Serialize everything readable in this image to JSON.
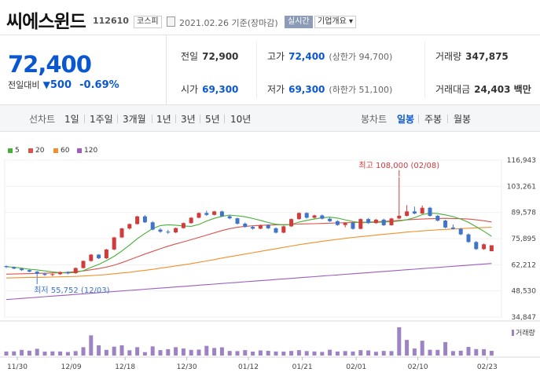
{
  "header": {
    "stock_name": "씨에스윈드",
    "stock_code": "112610",
    "market_badge": "코스피",
    "date_text": "2021.02.26 기준(장마감)",
    "realtime_badge": "실시간",
    "company_button": "기업개요 ▾"
  },
  "price": {
    "current": "72,400",
    "change_label": "전일대비",
    "change_arrow": "▼",
    "change_value": "500",
    "change_pct": "-0.69%"
  },
  "stats": {
    "prev_close_label": "전일",
    "prev_close": "72,900",
    "open_label": "시가",
    "open": "69,300",
    "high_label": "고가",
    "high": "72,400",
    "high_limit": "(상한가 94,700)",
    "low_label": "저가",
    "low": "69,300",
    "low_limit": "(하한가 51,100)",
    "volume_label": "거래량",
    "volume": "347,875",
    "amount_label": "거래대금",
    "amount": "24,403 백만"
  },
  "toolbar": {
    "line_chart_label": "선차트",
    "periods": [
      "1일",
      "1주일",
      "3개월",
      "1년",
      "3년",
      "5년",
      "10년"
    ],
    "candle_label": "봉차트",
    "candle_periods": [
      "일봉",
      "주봉",
      "월봉"
    ],
    "active_candle": "일봉"
  },
  "colors": {
    "up": "#d13b3b",
    "down": "#3f74c9",
    "ma5": "#45b035",
    "ma20": "#d9534f",
    "ma60": "#f0902a",
    "ma120": "#9c5cc0",
    "volume": "#9d83c4"
  },
  "chart_data": {
    "type": "candlestick",
    "legend": [
      {
        "name": "5",
        "color": "#45b035"
      },
      {
        "name": "20",
        "color": "#d9534f"
      },
      {
        "name": "60",
        "color": "#f0902a"
      },
      {
        "name": "120",
        "color": "#9c5cc0"
      }
    ],
    "y_ticks": [
      "116,943",
      "103,261",
      "89,578",
      "75,895",
      "62,212",
      "48,530",
      "34,847"
    ],
    "ylim": [
      34847,
      116943
    ],
    "x_ticks": [
      "11/30",
      "12/09",
      "12/18",
      "12/30",
      "01/12",
      "01/21",
      "02/01",
      "02/10",
      "02/23"
    ],
    "high_annotation": "최고 108,000 (02/08)",
    "low_annotation": "최저 55,752 (12/03)",
    "volume_label": "거래량",
    "candles": [
      [
        61500,
        61800,
        60500,
        61000
      ],
      [
        61000,
        61300,
        59900,
        60200
      ],
      [
        60200,
        60600,
        59000,
        59400
      ],
      [
        59400,
        59800,
        58300,
        58600
      ],
      [
        58600,
        58900,
        55752,
        57500
      ],
      [
        57500,
        58100,
        56400,
        56900
      ],
      [
        56900,
        57600,
        56200,
        57300
      ],
      [
        57300,
        58600,
        56900,
        58400
      ],
      [
        58400,
        58800,
        57200,
        57700
      ],
      [
        57800,
        60800,
        57500,
        60500
      ],
      [
        60500,
        64500,
        60200,
        64200
      ],
      [
        64200,
        67800,
        63800,
        67500
      ],
      [
        67500,
        67800,
        65200,
        65600
      ],
      [
        65600,
        70500,
        65300,
        70200
      ],
      [
        70200,
        76800,
        69800,
        76500
      ],
      [
        76500,
        81500,
        76200,
        81200
      ],
      [
        81200,
        83800,
        80600,
        83500
      ],
      [
        83500,
        87800,
        83200,
        87500
      ],
      [
        87500,
        88200,
        84100,
        84400
      ],
      [
        84400,
        85000,
        80200,
        80600
      ],
      [
        80600,
        81400,
        78900,
        79500
      ],
      [
        79500,
        80500,
        78300,
        79100
      ],
      [
        79100,
        81700,
        78800,
        81400
      ],
      [
        81400,
        84300,
        81100,
        84000
      ],
      [
        84000,
        87100,
        83700,
        86800
      ],
      [
        86800,
        89600,
        86500,
        89300
      ],
      [
        89300,
        90500,
        87800,
        88300
      ],
      [
        88300,
        90400,
        88000,
        90100
      ],
      [
        90100,
        90500,
        87200,
        87600
      ],
      [
        87600,
        88400,
        86000,
        86500
      ],
      [
        86500,
        86900,
        83200,
        83700
      ],
      [
        83700,
        84300,
        81600,
        82000
      ],
      [
        82000,
        82600,
        80600,
        81100
      ],
      [
        81100,
        83200,
        80800,
        82900
      ],
      [
        82900,
        83400,
        80900,
        81300
      ],
      [
        81300,
        81800,
        78600,
        79000
      ],
      [
        79000,
        82600,
        78700,
        82300
      ],
      [
        82300,
        86400,
        82000,
        86100
      ],
      [
        86100,
        89600,
        85800,
        89300
      ],
      [
        89300,
        89600,
        86400,
        86800
      ],
      [
        86800,
        88400,
        86400,
        88000
      ],
      [
        88000,
        88500,
        85900,
        86300
      ],
      [
        86300,
        86800,
        84600,
        85000
      ],
      [
        85000,
        85500,
        82600,
        83000
      ],
      [
        83000,
        84400,
        81800,
        84100
      ],
      [
        84100,
        84600,
        80600,
        81000
      ],
      [
        81000,
        86400,
        80700,
        86100
      ],
      [
        86100,
        86600,
        83600,
        84000
      ],
      [
        84000,
        86100,
        83600,
        85800
      ],
      [
        85800,
        86300,
        82500,
        82900
      ],
      [
        82900,
        86700,
        82600,
        86400
      ],
      [
        86400,
        108000,
        86100,
        87800
      ],
      [
        87800,
        93400,
        87500,
        90100
      ],
      [
        90100,
        92600,
        88600,
        89000
      ],
      [
        89000,
        93200,
        88700,
        92000
      ],
      [
        92000,
        92500,
        87400,
        87800
      ],
      [
        87800,
        88300,
        84900,
        85300
      ],
      [
        85300,
        85800,
        81300,
        81700
      ],
      [
        81700,
        83300,
        80600,
        81000
      ],
      [
        81000,
        81500,
        77700,
        78100
      ],
      [
        78100,
        78600,
        73700,
        74100
      ],
      [
        74100,
        74600,
        70000,
        70400
      ],
      [
        70400,
        73300,
        70000,
        72900
      ],
      [
        69300,
        72400,
        69300,
        72400
      ]
    ],
    "ma5": [
      61200,
      60900,
      60400,
      59900,
      59500,
      59000,
      58500,
      58100,
      57900,
      58200,
      59100,
      60800,
      62400,
      64400,
      66600,
      69400,
      72500,
      75800,
      78600,
      81100,
      82700,
      83100,
      82900,
      82500,
      82300,
      83300,
      85100,
      86500,
      87500,
      88200,
      87800,
      87300,
      86400,
      85400,
      84300,
      83400,
      83000,
      83300,
      84500,
      85400,
      86100,
      86800,
      87100,
      86600,
      85700,
      84800,
      84200,
      84300,
      84400,
      84500,
      84700,
      85100,
      85800,
      86800,
      88400,
      89200,
      89000,
      88300,
      87400,
      86100,
      84400,
      82100,
      79700,
      77100
    ],
    "ma20": [
      57300,
      57400,
      57500,
      57600,
      57700,
      57800,
      57900,
      58000,
      58300,
      58600,
      59000,
      59600,
      60200,
      61000,
      62000,
      63300,
      64800,
      66300,
      67800,
      69200,
      70600,
      71900,
      73100,
      74200,
      75300,
      76500,
      77700,
      78900,
      80100,
      81100,
      81800,
      82300,
      82600,
      82800,
      83000,
      83100,
      83200,
      83300,
      83500,
      83600,
      83700,
      83800,
      84000,
      84100,
      84200,
      84300,
      84400,
      84500,
      84700,
      84900,
      85100,
      85400,
      85700,
      85900,
      86100,
      86300,
      86400,
      86500,
      86400,
      86300,
      86100,
      85700,
      85200,
      84600
    ],
    "ma60": [
      55300,
      55400,
      55500,
      55600,
      55600,
      55700,
      55800,
      55900,
      56000,
      56100,
      56300,
      56500,
      56800,
      57100,
      57500,
      57900,
      58300,
      58800,
      59300,
      59800,
      60400,
      61000,
      61600,
      62200,
      62800,
      63500,
      64200,
      64900,
      65700,
      66400,
      67100,
      67800,
      68500,
      69200,
      69900,
      70600,
      71300,
      72000,
      72700,
      73300,
      73900,
      74500,
      75000,
      75500,
      76000,
      76500,
      76900,
      77300,
      77700,
      78100,
      78500,
      78900,
      79300,
      79600,
      79900,
      80200,
      80500,
      80700,
      80900,
      81100,
      81300,
      81500,
      81700,
      81800
    ],
    "ma120": [
      44000,
      44300,
      44600,
      44900,
      45200,
      45500,
      45800,
      46100,
      46400,
      46700,
      47000,
      47300,
      47600,
      47900,
      48200,
      48500,
      48800,
      49100,
      49400,
      49700,
      50000,
      50300,
      50600,
      50900,
      51200,
      51500,
      51800,
      52100,
      52400,
      52700,
      53000,
      53300,
      53600,
      53900,
      54200,
      54500,
      54800,
      55100,
      55400,
      55700,
      56000,
      56300,
      56600,
      56900,
      57200,
      57500,
      57800,
      58100,
      58400,
      58700,
      59000,
      59300,
      59600,
      59900,
      60200,
      60500,
      60800,
      61100,
      61400,
      61700,
      62000,
      62300,
      62600,
      62900
    ],
    "volumes": [
      300000,
      310000,
      420000,
      360000,
      500000,
      290000,
      310000,
      300000,
      260000,
      330000,
      620000,
      1500000,
      760000,
      420000,
      660000,
      760000,
      390000,
      620000,
      250000,
      680000,
      400000,
      470000,
      620000,
      520000,
      420000,
      440000,
      720000,
      560000,
      610000,
      340000,
      330000,
      400000,
      290000,
      380000,
      350000,
      300000,
      290000,
      340000,
      400000,
      330000,
      300000,
      270000,
      430000,
      300000,
      330000,
      300000,
      400000,
      380000,
      280000,
      340000,
      330000,
      2100000,
      1160000,
      520000,
      1100000,
      430000,
      420000,
      1000000,
      330000,
      360000,
      640000,
      480000,
      470000,
      347875
    ]
  }
}
